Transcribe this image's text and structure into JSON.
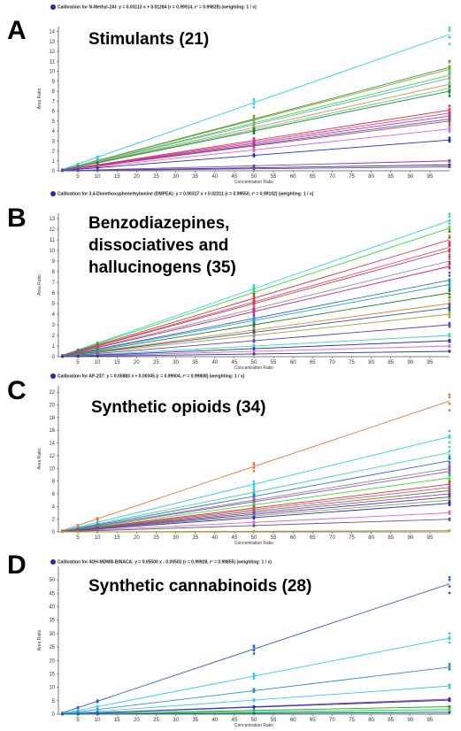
{
  "chart_data": [
    {
      "type": "line",
      "panel_letter": "A",
      "caption": "Calibration for N-Methyl-2AI: y = 0.03113 x + 0.01284 (r = 0.99914, r² = 0.99828) (weighting: 1 / x)",
      "title": "Stimulants (21)",
      "xlabel": "Concentration Ratio",
      "ylabel": "Area Ratio",
      "xlim": [
        0,
        100
      ],
      "ylim": [
        0,
        14.5
      ],
      "x": [
        1,
        5,
        10,
        50,
        100
      ],
      "x_ticks": [
        5,
        10,
        15,
        20,
        25,
        30,
        35,
        40,
        45,
        50,
        55,
        60,
        65,
        70,
        75,
        80,
        85,
        90,
        95
      ],
      "y_ticks": [
        0,
        1,
        2,
        3,
        4,
        5,
        6,
        7,
        8,
        9,
        10,
        11,
        12,
        13,
        14
      ],
      "series": [
        {
          "color": "#33ccee",
          "slope": 0.137
        },
        {
          "color": "#2ca02c",
          "slope": 0.104
        },
        {
          "color": "#9a9a3c",
          "slope": 0.102
        },
        {
          "color": "#2ee02e",
          "slope": 0.096
        },
        {
          "color": "#5ab0d8",
          "slope": 0.093
        },
        {
          "color": "#e08a30",
          "slope": 0.087
        },
        {
          "color": "#40d8a0",
          "slope": 0.083
        },
        {
          "color": "#2a7d2a",
          "slope": 0.08
        },
        {
          "color": "#e03030",
          "slope": 0.061
        },
        {
          "color": "#f04080",
          "slope": 0.058
        },
        {
          "color": "#d020d0",
          "slope": 0.055
        },
        {
          "color": "#3060d0",
          "slope": 0.052
        },
        {
          "color": "#c04040",
          "slope": 0.05
        },
        {
          "color": "#e060e0",
          "slope": 0.042
        },
        {
          "color": "#2030c0",
          "slope": 0.031
        },
        {
          "color": "#8040c0",
          "slope": 0.01
        },
        {
          "color": "#6020a0",
          "slope": 0.006
        },
        {
          "color": "#4060a0",
          "slope": 0.004
        }
      ]
    },
    {
      "type": "line",
      "panel_letter": "B",
      "caption": "Calibration for 3,4-Dimethoxyphenethylamine (DMPEA): y = 0.00317 x + 0.02311 (r = 0.99550, r² = 0.99102) (weighting: 1 / x)",
      "title": "Benzodiazepines, dissociatives and hallucinogens (35)",
      "title_lines": [
        "Benzodiazepines,",
        "dissociatives and",
        "hallucinogens (35)"
      ],
      "xlabel": "Concentration Ratio",
      "ylabel": "Area Ratio",
      "xlim": [
        0,
        100
      ],
      "ylim": [
        0,
        13.5
      ],
      "x": [
        1,
        5,
        10,
        50,
        100
      ],
      "x_ticks": [
        5,
        10,
        15,
        20,
        25,
        30,
        35,
        40,
        45,
        50,
        55,
        60,
        65,
        70,
        75,
        80,
        85,
        90,
        95
      ],
      "y_ticks": [
        0,
        1,
        2,
        3,
        4,
        5,
        6,
        7,
        8,
        9,
        10,
        11,
        12,
        13
      ],
      "series": [
        {
          "color": "#33ccee",
          "slope": 0.128
        },
        {
          "color": "#2ee02e",
          "slope": 0.121
        },
        {
          "color": "#e03030",
          "slope": 0.11
        },
        {
          "color": "#f04080",
          "slope": 0.103
        },
        {
          "color": "#c04040",
          "slope": 0.1
        },
        {
          "color": "#8a8a8a",
          "slope": 0.09
        },
        {
          "color": "#d02090",
          "slope": 0.085
        },
        {
          "color": "#3070d0",
          "slope": 0.072
        },
        {
          "color": "#20a0c0",
          "slope": 0.068
        },
        {
          "color": "#2a7d2a",
          "slope": 0.06
        },
        {
          "color": "#e08a30",
          "slope": 0.05
        },
        {
          "color": "#3050a0",
          "slope": 0.046
        },
        {
          "color": "#a0a040",
          "slope": 0.04
        },
        {
          "color": "#6040c0",
          "slope": 0.03
        },
        {
          "color": "#40d8a0",
          "slope": 0.02
        },
        {
          "color": "#2030c0",
          "slope": 0.015
        },
        {
          "color": "#e060e0",
          "slope": 0.01
        },
        {
          "color": "#204080",
          "slope": 0.005
        }
      ]
    },
    {
      "type": "line",
      "panel_letter": "C",
      "caption": "Calibration for AP-237: y = 0.05883 x + 0.00345 (r = 0.99904, r² = 0.99808) (weighting: 1 / x)",
      "title": "Synthetic opioids (34)",
      "xlabel": "Concentration Ratio",
      "ylabel": "Area Ratio",
      "xlim": [
        0,
        100
      ],
      "ylim": [
        0,
        23
      ],
      "x": [
        1,
        5,
        10,
        50,
        100
      ],
      "x_ticks": [
        5,
        10,
        15,
        20,
        25,
        30,
        35,
        40,
        45,
        50,
        55,
        60,
        65,
        70,
        75,
        80,
        85,
        90,
        95
      ],
      "y_ticks": [
        0,
        2,
        4,
        6,
        8,
        10,
        12,
        14,
        16,
        18,
        20,
        22
      ],
      "series": [
        {
          "color": "#f07830",
          "slope": 0.206
        },
        {
          "color": "#33ccee",
          "slope": 0.15
        },
        {
          "color": "#40d8a0",
          "slope": 0.125
        },
        {
          "color": "#3070d0",
          "slope": 0.112
        },
        {
          "color": "#8a8a8a",
          "slope": 0.1
        },
        {
          "color": "#9050c0",
          "slope": 0.095
        },
        {
          "color": "#2ee02e",
          "slope": 0.085
        },
        {
          "color": "#e03030",
          "slope": 0.075
        },
        {
          "color": "#f04080",
          "slope": 0.07
        },
        {
          "color": "#2ca02c",
          "slope": 0.065
        },
        {
          "color": "#d020d0",
          "slope": 0.06
        },
        {
          "color": "#3050a0",
          "slope": 0.055
        },
        {
          "color": "#a0a040",
          "slope": 0.05
        },
        {
          "color": "#2030c0",
          "slope": 0.045
        },
        {
          "color": "#e060e0",
          "slope": 0.03
        },
        {
          "color": "#606060",
          "slope": 0.02
        },
        {
          "color": "#c0a020",
          "slope": 0.002
        }
      ]
    },
    {
      "type": "line",
      "panel_letter": "D",
      "caption": "Calibration for 4OH-MDMB-BINACA: y = 0.05500 x - 0.00502 (r = 0.99928, r² = 0.99855) (weighting: 1 / x)",
      "title": "Synthetic cannabinoids (28)",
      "xlabel": "Concentration Ratio",
      "ylabel": "Area Ratio",
      "xlim": [
        0,
        100
      ],
      "ylim": [
        0,
        55
      ],
      "x": [
        1,
        5,
        10,
        50,
        100
      ],
      "x_ticks": [
        5,
        10,
        15,
        20,
        25,
        30,
        35,
        40,
        45,
        50,
        55,
        60,
        65,
        70,
        75,
        80,
        85,
        90,
        95
      ],
      "y_ticks": [
        0,
        5,
        10,
        15,
        20,
        25,
        30,
        35,
        40,
        45,
        50
      ],
      "series": [
        {
          "color": "#3060d8",
          "slope": 0.485
        },
        {
          "color": "#33ccee",
          "slope": 0.283
        },
        {
          "color": "#3090d0",
          "slope": 0.175
        },
        {
          "color": "#40c8e0",
          "slope": 0.105
        },
        {
          "color": "#8040c0",
          "slope": 0.056
        },
        {
          "color": "#2030c0",
          "slope": 0.052
        },
        {
          "color": "#2ea02e",
          "slope": 0.028
        },
        {
          "color": "#2ee02e",
          "slope": 0.018
        },
        {
          "color": "#40d8a0",
          "slope": 0.012
        },
        {
          "color": "#3050a0",
          "slope": 0.006
        }
      ]
    }
  ]
}
